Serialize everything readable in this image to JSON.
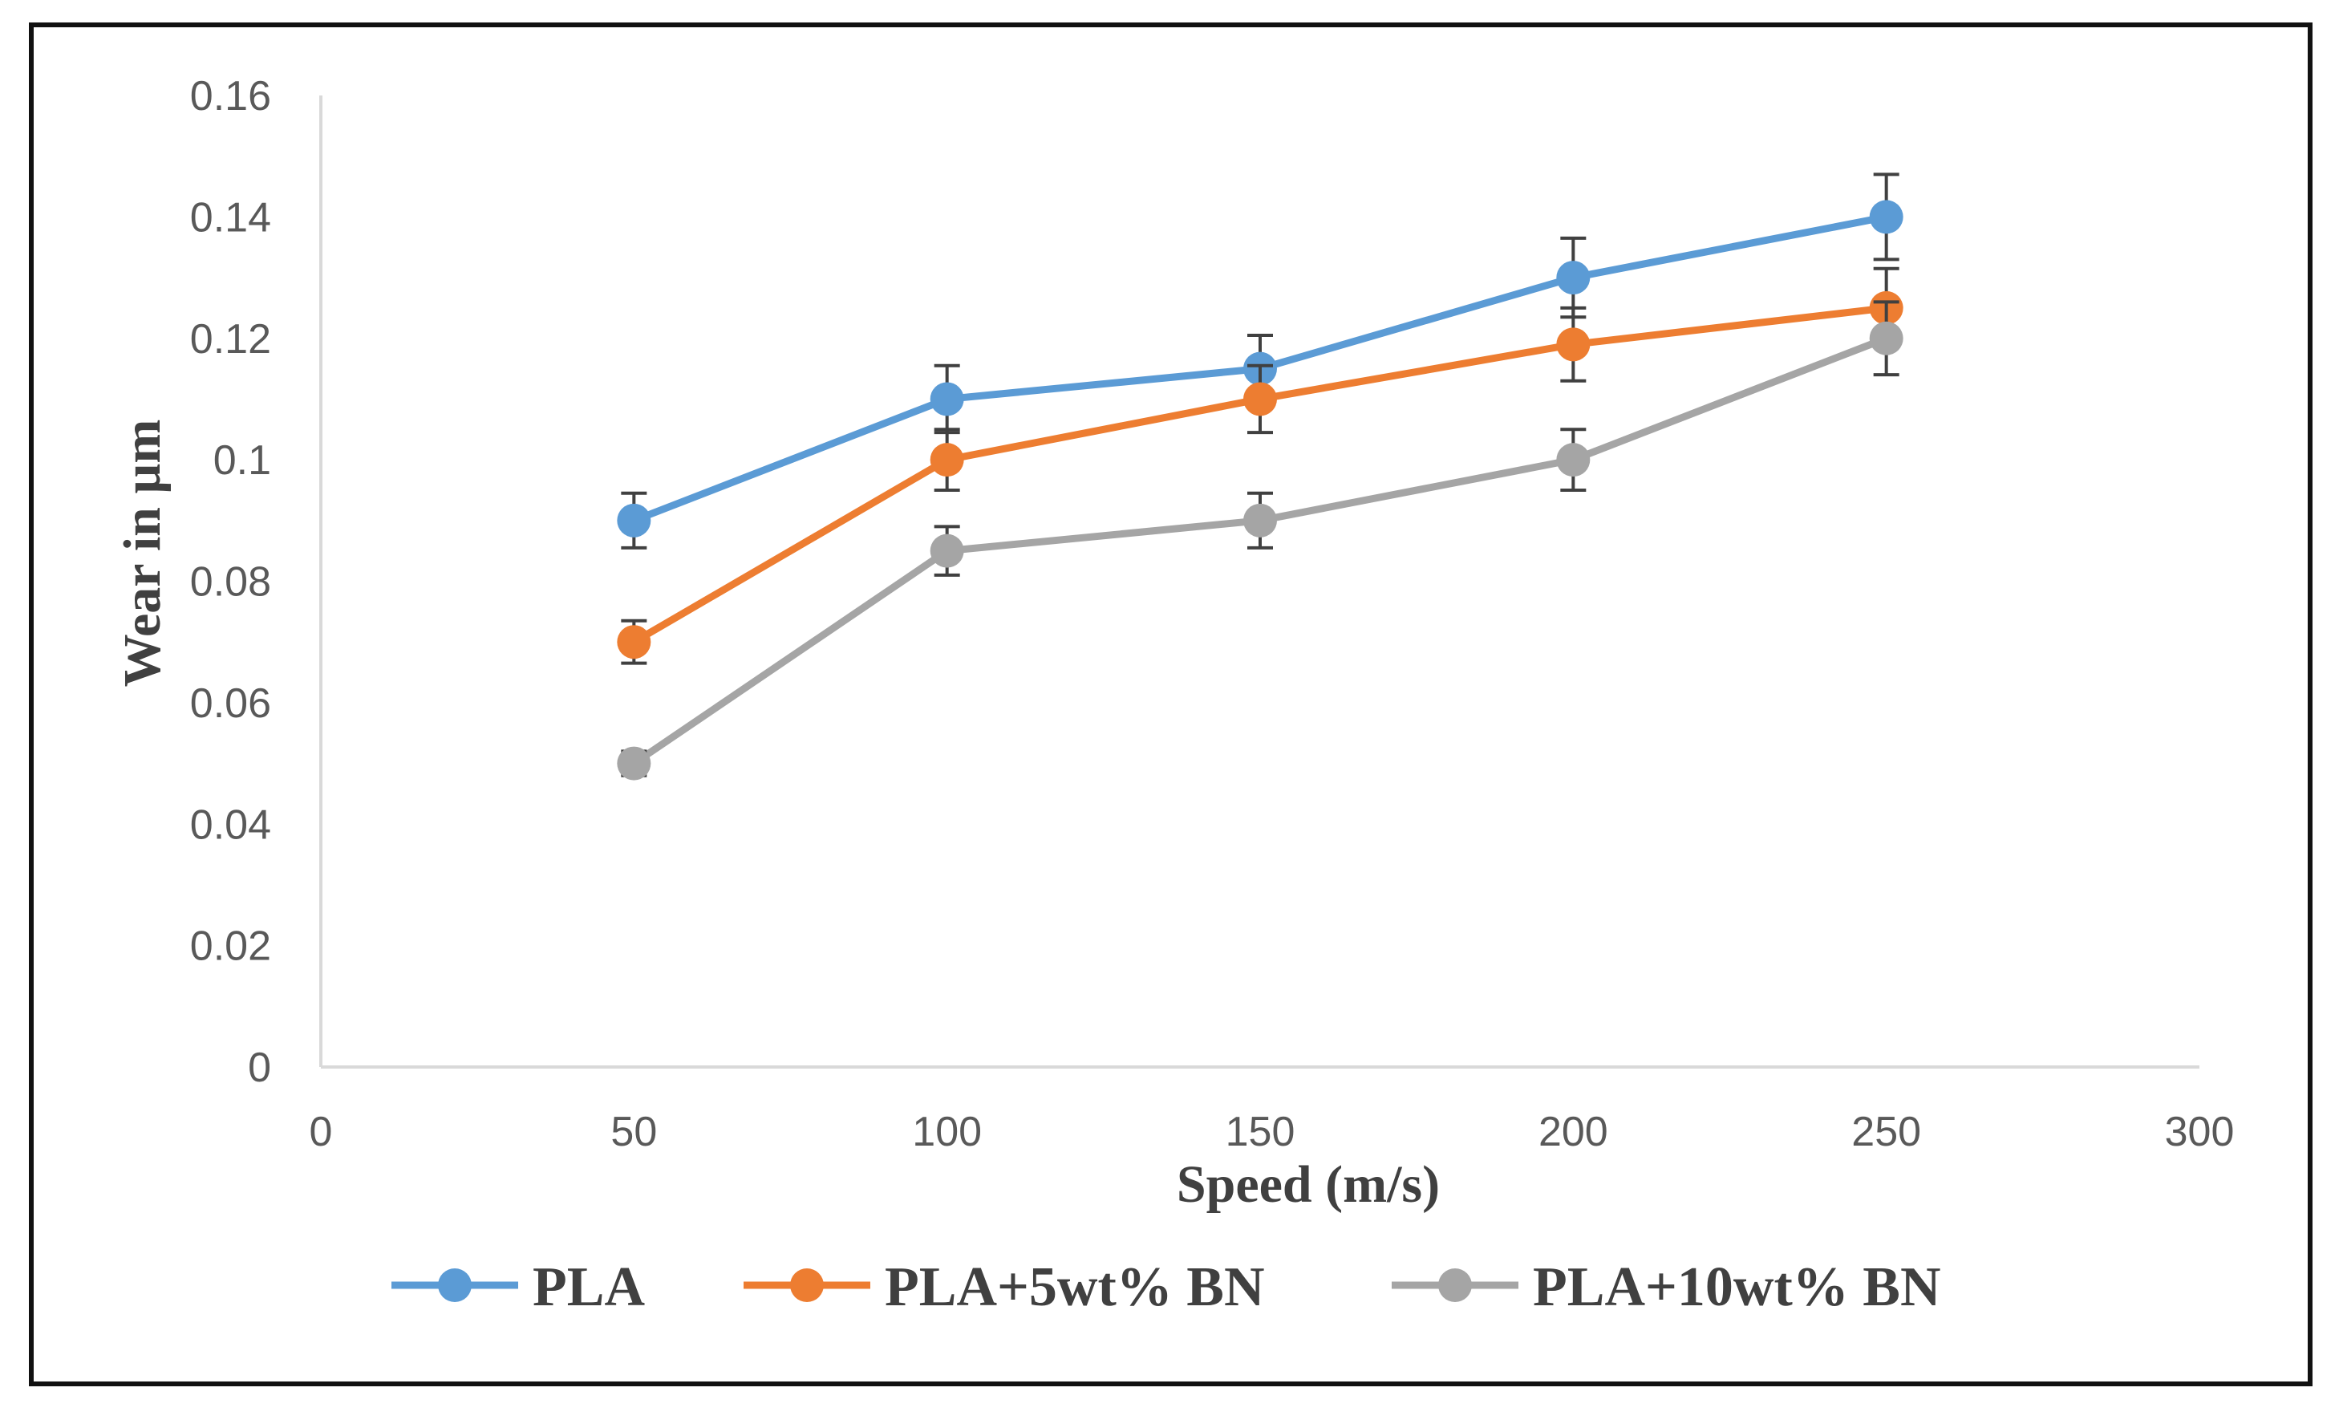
{
  "chart_data": {
    "type": "line",
    "title": "",
    "xlabel": "Speed (m/s)",
    "ylabel": "Wear in µm",
    "xlim": [
      0,
      300
    ],
    "ylim": [
      0,
      0.16
    ],
    "x_ticks": [
      "0",
      "50",
      "100",
      "150",
      "200",
      "250",
      "300"
    ],
    "y_ticks": [
      "0",
      "0.02",
      "0.04",
      "0.06",
      "0.08",
      "0.1",
      "0.12",
      "0.14",
      "0.16"
    ],
    "x": [
      50,
      100,
      150,
      200,
      250
    ],
    "series": [
      {
        "name": "PLA",
        "color": "#5b9bd5",
        "values": [
          0.09,
          0.11,
          0.115,
          0.13,
          0.14
        ],
        "errors": [
          0.0045,
          0.0055,
          0.0055,
          0.0065,
          0.007
        ]
      },
      {
        "name": "PLA+5wt% BN",
        "color": "#ed7d31",
        "values": [
          0.07,
          0.1,
          0.11,
          0.119,
          0.125
        ],
        "errors": [
          0.0035,
          0.005,
          0.0055,
          0.006,
          0.0065
        ]
      },
      {
        "name": "PLA+10wt% BN",
        "color": "#a5a5a5",
        "values": [
          0.05,
          0.085,
          0.09,
          0.1,
          0.12
        ],
        "errors": [
          0.002,
          0.004,
          0.0045,
          0.005,
          0.006
        ]
      }
    ],
    "error_bar_color": "#404040",
    "grid": false,
    "legend_position": "bottom"
  }
}
